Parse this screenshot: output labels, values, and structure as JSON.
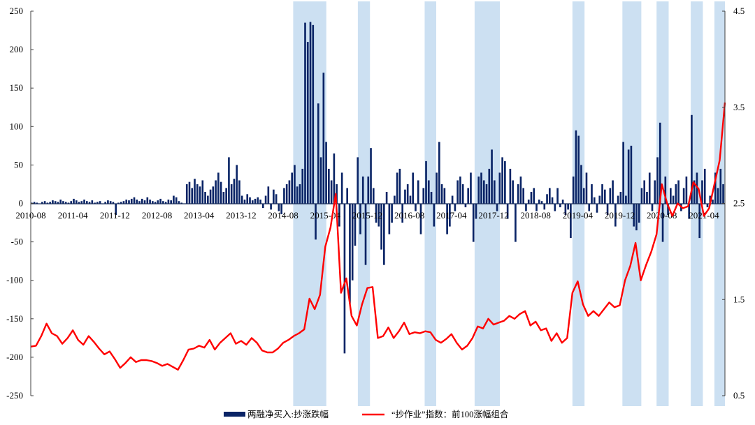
{
  "chart_data": {
    "type": "bar+line",
    "title": "",
    "x_start": "2010-08",
    "x_unit": "months since 2010-08",
    "x_range_months": [
      0,
      132
    ],
    "x_tick_labels": [
      "2010-08",
      "2011-04",
      "2011-12",
      "2012-08",
      "2013-04",
      "2013-12",
      "2014-08",
      "2015-04",
      "2015-12",
      "2016-08",
      "2017-04",
      "2017-12",
      "2018-08",
      "2019-04",
      "2019-12",
      "2020-08",
      "2021-04"
    ],
    "x_tick_months": [
      0,
      8,
      16,
      24,
      32,
      40,
      48,
      56,
      64,
      72,
      80,
      88,
      96,
      104,
      112,
      120,
      128
    ],
    "left_axis": {
      "ylim": [
        -250,
        250
      ],
      "ticks": [
        "250",
        "200",
        "150",
        "100",
        "50",
        "0",
        "-50",
        "-100",
        "-150",
        "-200",
        "-250"
      ],
      "tick_values": [
        250,
        200,
        150,
        100,
        50,
        0,
        -50,
        -100,
        -150,
        -200,
        -250
      ]
    },
    "right_axis": {
      "ylim": [
        0.5,
        4.5
      ],
      "ticks": [
        "4.5",
        "3.5",
        "2.5",
        "1.5",
        "0.5"
      ],
      "tick_values": [
        4.5,
        3.5,
        2.5,
        1.5,
        0.5
      ]
    },
    "shaded_periods_months": [
      [
        49.9,
        56.2
      ],
      [
        62.2,
        64.5
      ],
      [
        74.9,
        77.1
      ],
      [
        84.4,
        89.2
      ],
      [
        103,
        105.3
      ],
      [
        112.5,
        116.1
      ],
      [
        119,
        121.3
      ],
      [
        125.5,
        127.8
      ],
      [
        130,
        132
      ]
    ],
    "series": [
      {
        "name": "两融净买入:抄涨跌幅",
        "type": "bar",
        "axis": "left",
        "color": "#0a2466",
        "step_months": 0.5,
        "values": [
          1,
          2,
          1,
          0,
          2,
          3,
          1,
          2,
          4,
          3,
          2,
          5,
          3,
          2,
          1,
          3,
          6,
          4,
          2,
          3,
          5,
          3,
          2,
          4,
          1,
          2,
          3,
          -1,
          2,
          4,
          3,
          2,
          -15,
          1,
          2,
          3,
          5,
          4,
          6,
          8,
          5,
          3,
          6,
          4,
          8,
          5,
          3,
          2,
          4,
          6,
          3,
          2,
          5,
          4,
          10,
          8,
          3,
          1,
          0,
          25,
          28,
          20,
          32,
          25,
          22,
          30,
          15,
          10,
          18,
          22,
          30,
          40,
          28,
          15,
          20,
          60,
          25,
          32,
          50,
          30,
          10,
          5,
          12,
          8,
          4,
          6,
          8,
          5,
          -6,
          10,
          22,
          -8,
          18,
          12,
          -10,
          -14,
          20,
          25,
          30,
          40,
          50,
          22,
          25,
          45,
          235,
          210,
          236,
          232,
          -47,
          130,
          60,
          170,
          80,
          45,
          30,
          65,
          25,
          -30,
          40,
          -195,
          20,
          -130,
          -100,
          -55,
          60,
          -40,
          35,
          -80,
          35,
          72,
          20,
          -25,
          -30,
          -60,
          -80,
          15,
          -40,
          -25,
          10,
          40,
          45,
          -25,
          18,
          25,
          10,
          40,
          -10,
          30,
          -40,
          20,
          55,
          30,
          15,
          -30,
          40,
          80,
          25,
          20,
          -40,
          -30,
          10,
          -10,
          30,
          35,
          25,
          -5,
          20,
          40,
          -50,
          -20,
          35,
          40,
          30,
          25,
          45,
          70,
          30,
          -10,
          40,
          60,
          55,
          -20,
          45,
          30,
          -50,
          25,
          35,
          20,
          -10,
          5,
          15,
          20,
          -10,
          5,
          3,
          -8,
          12,
          20,
          8,
          -10,
          20,
          -5,
          5,
          -15,
          -8,
          -45,
          35,
          95,
          88,
          50,
          20,
          40,
          -10,
          25,
          8,
          -12,
          10,
          25,
          18,
          -15,
          20,
          30,
          -30,
          10,
          15,
          80,
          10,
          70,
          75,
          -30,
          -35,
          -25,
          20,
          30,
          15,
          40,
          -10,
          30,
          60,
          105,
          -50,
          35,
          -15,
          20,
          10,
          25,
          30,
          -10,
          20,
          35,
          -20,
          115,
          30,
          40,
          -45,
          30,
          45,
          -5,
          10,
          5,
          40,
          20,
          45,
          25
        ]
      },
      {
        "name": "“抄作业”指数：前100涨幅组合",
        "type": "line",
        "axis": "right",
        "color": "#ff0000",
        "step_months": 1,
        "values": [
          1.01,
          1.02,
          1.12,
          1.25,
          1.15,
          1.12,
          1.04,
          1.1,
          1.18,
          1.08,
          1.03,
          1.12,
          1.06,
          0.99,
          0.93,
          0.96,
          0.88,
          0.79,
          0.84,
          0.9,
          0.85,
          0.87,
          0.87,
          0.86,
          0.84,
          0.81,
          0.83,
          0.8,
          0.77,
          0.87,
          0.98,
          0.99,
          1.02,
          1.0,
          1.08,
          0.98,
          1.05,
          1.1,
          1.15,
          1.04,
          1.07,
          1.03,
          1.1,
          1.05,
          0.97,
          0.95,
          0.95,
          0.99,
          1.05,
          1.08,
          1.12,
          1.15,
          1.19,
          1.51,
          1.4,
          1.55,
          2.05,
          2.25,
          2.6,
          1.57,
          1.72,
          1.33,
          1.23,
          1.45,
          1.62,
          1.63,
          1.1,
          1.12,
          1.21,
          1.1,
          1.17,
          1.26,
          1.14,
          1.16,
          1.15,
          1.17,
          1.16,
          1.08,
          1.05,
          1.09,
          1.14,
          1.05,
          0.98,
          1.02,
          1.1,
          1.22,
          1.2,
          1.3,
          1.24,
          1.26,
          1.28,
          1.33,
          1.3,
          1.35,
          1.38,
          1.23,
          1.27,
          1.18,
          1.2,
          1.07,
          1.15,
          1.05,
          1.1,
          1.57,
          1.69,
          1.45,
          1.33,
          1.38,
          1.33,
          1.4,
          1.47,
          1.42,
          1.44,
          1.7,
          1.85,
          2.09,
          1.7,
          1.86,
          2.0,
          2.18,
          2.7,
          2.5,
          2.37,
          2.5,
          2.45,
          2.47,
          2.72,
          2.65,
          2.37,
          2.45,
          2.7,
          2.95,
          3.55
        ]
      }
    ],
    "legend": {
      "placement": "bottom-center",
      "bar_label": "两融净买入:抄涨跌幅",
      "line_label": "“抄作业”指数：前100涨幅组合"
    },
    "grid": false
  }
}
